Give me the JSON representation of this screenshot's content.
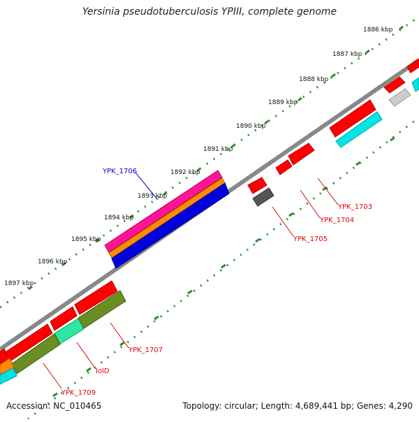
{
  "title": "Yersinia pseudotuberculosis YPIII, complete genome",
  "footer": {
    "accession": "Accession: NC_010465",
    "summary": "Topology: circular; Length: 4,689,441 bp; Genes: 4,290"
  },
  "ruler": {
    "ticks": [
      "1886 kbp",
      "1887 kbp",
      "1888 kbp",
      "1889 kbp",
      "1890 kbp",
      "1891 kbp",
      "1892 kbp",
      "1893 kbp",
      "1894 kbp",
      "1895 kbp",
      "1896 kbp",
      "1897 kbp"
    ]
  },
  "gene_labels": {
    "ypk_1706": "YPK_1706",
    "ypk_1703": "YPK_1703",
    "ypk_1704": "YPK_1704",
    "ypk_1705": "YPK_1705",
    "ypk_1707": "YPK_1707",
    "iold": "IolD",
    "ypk_1709": "YPK_1709"
  },
  "colors": {
    "backbone": "#888888",
    "ruler_dots": "#2e8b2e",
    "cds": "#ff0000",
    "pseudo": "#555555",
    "cyan": "#00e5e5",
    "olive": "#6b8e23",
    "teal": "#2ee6a0",
    "magenta": "#ff1493",
    "orange": "#ff8c00",
    "blue": "#0000dd",
    "label_red": "#dd0000",
    "label_blue": "#0000cc"
  }
}
